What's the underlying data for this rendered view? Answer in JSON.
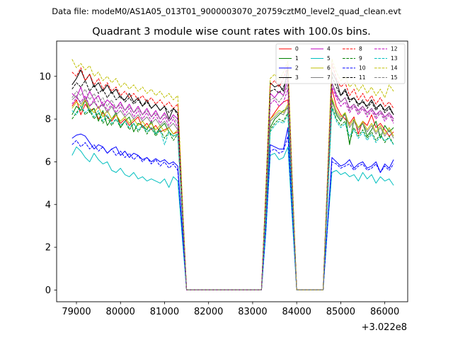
{
  "chart_data": {
    "type": "line",
    "suptitle": "Data file: modeM0/AS1A05_013T01_9000003070_20759cztM0_level2_quad_clean.evt",
    "title": "Quadrant 3 module wise count rates with 100.0s bins.",
    "xlabel": "",
    "ylabel": "",
    "x_offset_label": "+3.022e8",
    "xlim": [
      78550,
      86520
    ],
    "ylim": [
      -0.55,
      11.65
    ],
    "xticks": [
      79000,
      80000,
      81000,
      82000,
      83000,
      84000,
      85000,
      86000
    ],
    "xtick_labels": [
      "79000",
      "80000",
      "81000",
      "82000",
      "83000",
      "84000",
      "85000",
      "86000"
    ],
    "yticks": [
      0,
      2,
      4,
      6,
      8,
      10
    ],
    "ytick_labels": [
      "0",
      "2",
      "4",
      "6",
      "8",
      "10"
    ],
    "legend": {
      "position": "top-right",
      "columns": 4
    },
    "x": [
      78900,
      79000,
      79100,
      79200,
      79300,
      79400,
      79500,
      79600,
      79700,
      79800,
      79900,
      80000,
      80100,
      80200,
      80300,
      80400,
      80500,
      80600,
      80700,
      80800,
      80900,
      81000,
      81100,
      81200,
      81300,
      81400,
      81500,
      83200,
      83300,
      83400,
      83500,
      83600,
      83700,
      83800,
      83900,
      84000,
      84600,
      84700,
      84800,
      84900,
      85000,
      85100,
      85200,
      85300,
      85400,
      85500,
      85600,
      85700,
      85800,
      85900,
      86000,
      86100,
      86200
    ],
    "series": [
      {
        "name": "0",
        "color": "#ff0000",
        "dash": "solid",
        "values": [
          8.6,
          8.9,
          8.2,
          8.7,
          8.4,
          8.5,
          8.0,
          8.3,
          8.1,
          7.9,
          8.2,
          7.8,
          8.0,
          7.7,
          7.9,
          8.1,
          7.6,
          7.8,
          7.5,
          7.7,
          7.4,
          7.5,
          7.6,
          7.3,
          7.4,
          3.6,
          0.0,
          0.0,
          3.3,
          8.0,
          8.3,
          8.6,
          8.8,
          8.9,
          4.4,
          0.0,
          0.0,
          4.6,
          9.4,
          8.6,
          8.2,
          8.0,
          7.8,
          8.1,
          7.3,
          7.9,
          7.7,
          8.2,
          7.6,
          7.8,
          7.5,
          7.2,
          7.4
        ]
      },
      {
        "name": "1",
        "color": "#008000",
        "dash": "solid",
        "values": [
          8.2,
          8.6,
          8.4,
          8.9,
          8.3,
          8.5,
          7.9,
          8.4,
          7.7,
          8.0,
          8.3,
          7.6,
          7.9,
          8.1,
          7.4,
          7.8,
          7.7,
          7.5,
          7.9,
          7.3,
          7.6,
          7.8,
          7.4,
          7.2,
          7.3,
          3.6,
          0.0,
          0.0,
          3.2,
          7.6,
          8.0,
          8.2,
          8.4,
          8.5,
          4.2,
          0.0,
          0.0,
          4.4,
          8.9,
          8.2,
          7.9,
          8.3,
          6.8,
          8.0,
          7.6,
          7.8,
          7.2,
          7.5,
          7.9,
          7.1,
          7.7,
          7.4,
          7.6
        ]
      },
      {
        "name": "2",
        "color": "#0000ff",
        "dash": "solid",
        "values": [
          7.1,
          7.25,
          7.3,
          7.2,
          6.9,
          6.6,
          6.8,
          6.7,
          6.4,
          6.6,
          6.7,
          6.3,
          6.5,
          6.2,
          6.4,
          6.3,
          6.1,
          6.2,
          6.0,
          6.15,
          6.0,
          6.1,
          5.9,
          6.0,
          5.8,
          2.9,
          0.0,
          0.0,
          2.9,
          6.8,
          6.7,
          6.6,
          6.6,
          7.6,
          3.8,
          0.0,
          0.0,
          3.1,
          6.2,
          6.0,
          5.8,
          5.9,
          6.1,
          5.7,
          5.9,
          6.0,
          5.7,
          5.8,
          6.0,
          5.5,
          5.9,
          5.7,
          6.1
        ]
      },
      {
        "name": "3",
        "color": "#000000",
        "dash": "solid",
        "values": [
          9.6,
          9.9,
          10.3,
          9.8,
          10.1,
          9.5,
          9.7,
          9.3,
          9.6,
          9.2,
          9.4,
          9.0,
          8.9,
          9.2,
          8.8,
          9.0,
          8.6,
          8.9,
          8.5,
          8.7,
          8.4,
          8.6,
          8.0,
          8.5,
          8.3,
          4.2,
          0.0,
          0.0,
          4.7,
          9.7,
          9.5,
          9.6,
          9.3,
          10.4,
          5.0,
          0.0,
          0.0,
          5.2,
          10.2,
          9.8,
          9.1,
          9.4,
          8.9,
          9.0,
          8.7,
          8.8,
          8.6,
          8.9,
          8.5,
          8.7,
          8.4,
          8.6,
          8.2
        ]
      },
      {
        "name": "4",
        "color": "#bf00bf",
        "dash": "solid",
        "values": [
          9.2,
          9.0,
          9.5,
          8.8,
          9.3,
          8.9,
          9.1,
          8.6,
          8.9,
          8.7,
          8.5,
          8.8,
          8.4,
          8.7,
          8.3,
          8.6,
          8.2,
          8.5,
          8.1,
          8.4,
          8.0,
          8.3,
          7.9,
          8.2,
          8.0,
          4.0,
          0.0,
          0.0,
          4.4,
          9.2,
          9.0,
          9.3,
          9.1,
          9.9,
          4.8,
          0.0,
          0.0,
          4.9,
          9.7,
          9.1,
          8.8,
          9.0,
          8.5,
          8.7,
          8.4,
          8.6,
          8.3,
          8.5,
          8.2,
          8.4,
          8.1,
          8.3,
          8.0
        ]
      },
      {
        "name": "5",
        "color": "#00bfbf",
        "dash": "solid",
        "values": [
          6.3,
          6.7,
          6.5,
          6.2,
          6.0,
          6.4,
          6.1,
          5.9,
          6.0,
          5.6,
          5.5,
          5.7,
          5.4,
          5.3,
          5.5,
          5.2,
          5.3,
          5.1,
          5.2,
          5.1,
          5.0,
          5.2,
          4.8,
          5.3,
          5.1,
          2.5,
          0.0,
          0.0,
          2.7,
          6.3,
          6.4,
          6.1,
          6.2,
          6.7,
          3.3,
          0.0,
          0.0,
          2.9,
          5.5,
          5.6,
          5.4,
          5.5,
          5.3,
          5.4,
          5.1,
          5.5,
          5.2,
          5.4,
          5.0,
          5.3,
          5.1,
          5.2,
          4.9
        ]
      },
      {
        "name": "6",
        "color": "#bfbf00",
        "dash": "solid",
        "values": [
          8.5,
          8.8,
          8.6,
          8.9,
          8.5,
          8.3,
          8.6,
          8.1,
          8.4,
          8.0,
          8.2,
          7.9,
          8.1,
          7.8,
          8.0,
          7.7,
          7.9,
          7.6,
          7.8,
          7.5,
          7.7,
          7.4,
          7.6,
          7.3,
          7.5,
          3.7,
          0.0,
          0.0,
          3.6,
          8.0,
          8.2,
          8.4,
          8.3,
          8.7,
          4.3,
          0.0,
          0.0,
          4.5,
          9.0,
          8.4,
          8.1,
          8.3,
          7.7,
          8.0,
          7.6,
          7.9,
          7.5,
          7.8,
          7.4,
          7.7,
          7.3,
          7.6,
          7.2
        ]
      },
      {
        "name": "7",
        "color": "#808080",
        "dash": "solid",
        "values": [
          8.9,
          9.1,
          8.7,
          9.0,
          8.6,
          8.8,
          8.5,
          8.7,
          8.3,
          8.6,
          8.2,
          8.4,
          8.1,
          8.3,
          8.0,
          8.2,
          7.9,
          8.1,
          7.8,
          8.0,
          7.7,
          7.9,
          7.6,
          7.8,
          7.5,
          3.7,
          0.0,
          0.0,
          3.5,
          7.9,
          8.1,
          8.3,
          8.2,
          8.6,
          4.2,
          0.0,
          0.0,
          4.4,
          8.8,
          8.3,
          8.0,
          8.2,
          7.6,
          7.9,
          7.5,
          7.8,
          7.4,
          7.7,
          7.3,
          7.6,
          7.2,
          7.5,
          7.1
        ]
      },
      {
        "name": "8",
        "color": "#ff0000",
        "dash": "dashed",
        "values": [
          10.2,
          10.0,
          10.4,
          9.8,
          10.1,
          9.6,
          9.9,
          9.4,
          9.7,
          9.3,
          9.5,
          9.1,
          9.3,
          9.0,
          9.2,
          8.9,
          9.1,
          8.8,
          9.0,
          8.7,
          8.9,
          8.6,
          8.8,
          8.5,
          8.7,
          4.3,
          0.0,
          0.0,
          4.6,
          9.6,
          9.8,
          9.5,
          9.9,
          10.5,
          5.1,
          0.0,
          0.0,
          5.3,
          10.6,
          9.9,
          9.5,
          9.7,
          9.1,
          9.4,
          8.9,
          9.2,
          8.8,
          9.1,
          8.7,
          9.0,
          8.6,
          8.8,
          8.5
        ]
      },
      {
        "name": "9",
        "color": "#008000",
        "dash": "dashed",
        "values": [
          8.0,
          8.3,
          8.6,
          8.2,
          8.4,
          8.0,
          8.3,
          7.8,
          8.1,
          7.7,
          8.0,
          7.6,
          7.9,
          7.5,
          7.8,
          7.4,
          7.7,
          7.3,
          7.6,
          7.2,
          7.5,
          7.1,
          7.4,
          7.0,
          7.3,
          3.6,
          0.0,
          0.0,
          3.4,
          7.5,
          7.8,
          8.0,
          7.9,
          8.3,
          4.1,
          0.0,
          0.0,
          4.3,
          8.6,
          8.0,
          7.7,
          7.9,
          6.9,
          7.6,
          7.2,
          7.5,
          7.1,
          7.4,
          7.0,
          7.3,
          6.9,
          7.2,
          6.8
        ]
      },
      {
        "name": "10",
        "color": "#0000ff",
        "dash": "dashed",
        "values": [
          6.8,
          7.0,
          6.7,
          6.9,
          6.6,
          6.8,
          6.5,
          6.7,
          6.4,
          6.6,
          6.3,
          6.5,
          6.2,
          6.4,
          6.1,
          6.3,
          6.0,
          6.2,
          5.9,
          6.1,
          5.8,
          6.0,
          5.7,
          5.9,
          5.6,
          2.8,
          0.0,
          0.0,
          2.8,
          6.5,
          6.6,
          6.4,
          6.5,
          7.2,
          3.6,
          0.0,
          0.0,
          3.0,
          6.0,
          5.9,
          5.7,
          5.8,
          5.9,
          5.6,
          5.8,
          5.9,
          5.6,
          5.7,
          5.9,
          5.5,
          5.8,
          5.6,
          5.9
        ]
      },
      {
        "name": "11",
        "color": "#000000",
        "dash": "dashed",
        "values": [
          9.4,
          9.7,
          9.5,
          9.8,
          9.3,
          9.6,
          9.2,
          9.4,
          9.0,
          9.3,
          8.9,
          9.1,
          8.8,
          9.0,
          8.7,
          8.9,
          8.6,
          8.8,
          8.5,
          8.7,
          8.4,
          8.6,
          8.3,
          8.5,
          8.2,
          4.1,
          0.0,
          0.0,
          4.4,
          9.3,
          9.4,
          9.2,
          9.5,
          10.0,
          4.9,
          0.0,
          0.0,
          5.1,
          10.0,
          9.5,
          9.1,
          9.3,
          8.8,
          9.0,
          8.6,
          8.9,
          8.5,
          8.8,
          8.4,
          8.7,
          8.3,
          8.5,
          8.2
        ]
      },
      {
        "name": "12",
        "color": "#bf00bf",
        "dash": "dashed",
        "values": [
          8.7,
          9.0,
          8.8,
          9.1,
          8.6,
          8.9,
          8.5,
          8.8,
          8.4,
          8.7,
          8.3,
          8.6,
          8.2,
          8.5,
          8.1,
          8.4,
          8.0,
          8.3,
          7.9,
          8.2,
          7.8,
          8.1,
          7.7,
          8.0,
          7.6,
          3.8,
          0.0,
          0.0,
          4.0,
          8.7,
          8.9,
          8.6,
          8.8,
          9.4,
          4.6,
          0.0,
          0.0,
          4.8,
          9.5,
          9.0,
          8.6,
          8.8,
          8.3,
          8.6,
          8.2,
          8.5,
          8.1,
          8.4,
          8.0,
          8.3,
          7.9,
          8.2,
          7.8
        ]
      },
      {
        "name": "13",
        "color": "#00bfbf",
        "dash": "dashed",
        "values": [
          8.4,
          8.2,
          8.6,
          8.3,
          8.5,
          8.1,
          8.4,
          7.9,
          8.2,
          7.8,
          8.0,
          7.7,
          7.9,
          7.6,
          7.8,
          7.5,
          7.7,
          7.4,
          7.6,
          7.3,
          7.5,
          6.8,
          7.4,
          7.2,
          7.3,
          3.6,
          0.0,
          0.0,
          3.3,
          7.4,
          7.7,
          7.9,
          7.8,
          8.2,
          4.1,
          0.0,
          0.0,
          4.2,
          8.5,
          7.9,
          7.6,
          7.8,
          7.2,
          7.5,
          7.1,
          7.4,
          7.0,
          7.3,
          6.9,
          7.2,
          7.0,
          7.1,
          6.8
        ]
      },
      {
        "name": "14",
        "color": "#bfbf00",
        "dash": "dashed",
        "values": [
          10.8,
          10.4,
          10.6,
          10.3,
          10.5,
          10.0,
          10.2,
          9.8,
          10.0,
          9.7,
          9.9,
          9.5,
          9.7,
          9.4,
          9.6,
          9.3,
          9.5,
          9.2,
          9.4,
          9.1,
          9.3,
          9.0,
          9.2,
          8.9,
          9.1,
          4.5,
          0.0,
          0.0,
          4.8,
          9.9,
          10.1,
          9.8,
          10.2,
          10.7,
          5.2,
          0.0,
          0.0,
          5.4,
          10.8,
          10.2,
          9.8,
          10.0,
          9.5,
          9.7,
          9.3,
          9.6,
          9.2,
          9.5,
          9.1,
          9.4,
          9.0,
          9.6,
          9.3
        ]
      },
      {
        "name": "15",
        "color": "#808080",
        "dash": "dashed",
        "values": [
          9.0,
          9.3,
          9.1,
          9.4,
          8.9,
          9.2,
          8.8,
          9.0,
          8.6,
          8.9,
          8.5,
          8.7,
          8.4,
          8.6,
          8.3,
          8.5,
          8.2,
          8.4,
          8.1,
          8.3,
          8.0,
          8.2,
          7.9,
          8.1,
          7.8,
          3.9,
          0.0,
          0.0,
          4.1,
          8.9,
          9.0,
          8.8,
          9.1,
          9.6,
          4.7,
          0.0,
          0.0,
          4.9,
          9.7,
          9.2,
          8.8,
          9.0,
          8.4,
          8.7,
          8.3,
          8.6,
          8.2,
          8.5,
          8.1,
          8.4,
          8.0,
          8.3,
          7.9
        ]
      }
    ]
  }
}
